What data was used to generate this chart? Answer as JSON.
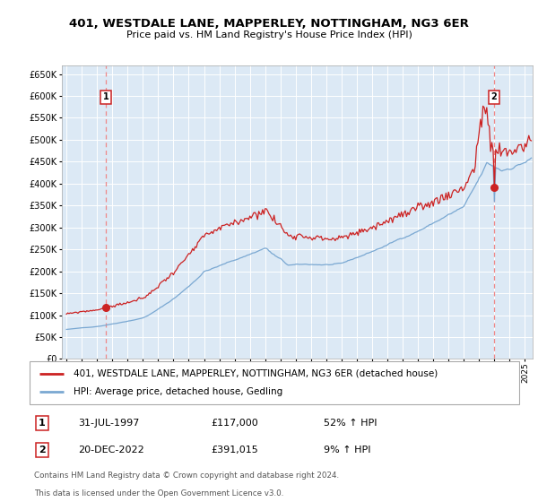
{
  "title": "401, WESTDALE LANE, MAPPERLEY, NOTTINGHAM, NG3 6ER",
  "subtitle": "Price paid vs. HM Land Registry's House Price Index (HPI)",
  "legend_line1": "401, WESTDALE LANE, MAPPERLEY, NOTTINGHAM, NG3 6ER (detached house)",
  "legend_line2": "HPI: Average price, detached house, Gedling",
  "footnote1": "Contains HM Land Registry data © Crown copyright and database right 2024.",
  "footnote2": "This data is licensed under the Open Government Licence v3.0.",
  "sale1_date": "31-JUL-1997",
  "sale1_price": "£117,000",
  "sale1_hpi": "52% ↑ HPI",
  "sale2_date": "20-DEC-2022",
  "sale2_price": "£391,015",
  "sale2_hpi": "9% ↑ HPI",
  "sale1_x": 1997.58,
  "sale1_y": 117000,
  "sale2_x": 2022.97,
  "sale2_y": 391015,
  "hpi_color": "#7aa8d2",
  "price_color": "#cc2222",
  "dot_color": "#cc2222",
  "vline_color": "#ee8888",
  "bg_color": "#dce9f5",
  "grid_color": "#ffffff",
  "ylim": [
    0,
    670000
  ],
  "xlim_start": 1994.7,
  "xlim_end": 2025.5,
  "yticks": [
    0,
    50000,
    100000,
    150000,
    200000,
    250000,
    300000,
    350000,
    400000,
    450000,
    500000,
    550000,
    600000,
    650000
  ],
  "xticks": [
    1995,
    1996,
    1997,
    1998,
    1999,
    2000,
    2001,
    2002,
    2003,
    2004,
    2005,
    2006,
    2007,
    2008,
    2009,
    2010,
    2011,
    2012,
    2013,
    2014,
    2015,
    2016,
    2017,
    2018,
    2019,
    2020,
    2021,
    2022,
    2023,
    2024,
    2025
  ]
}
